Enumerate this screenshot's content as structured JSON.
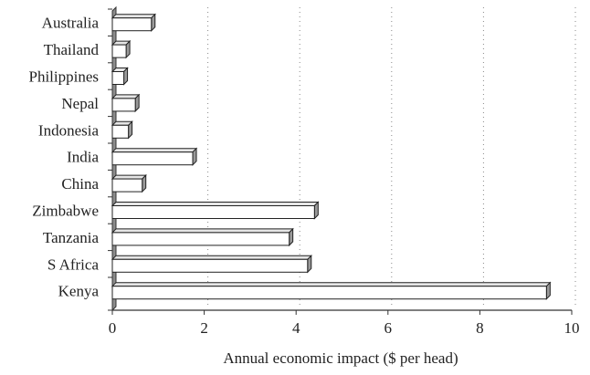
{
  "chart_data": {
    "type": "bar",
    "orientation": "horizontal",
    "style": "3d",
    "categories": [
      "Australia",
      "Thailand",
      "Philippines",
      "Nepal",
      "Indonesia",
      "India",
      "China",
      "Zimbabwe",
      "Tanzania",
      "S Africa",
      "Kenya"
    ],
    "values": [
      0.85,
      0.3,
      0.25,
      0.5,
      0.35,
      1.75,
      0.65,
      4.4,
      3.85,
      4.25,
      9.45
    ],
    "xlabel": "Annual economic impact ($ per head)",
    "ylabel": "",
    "xlim": [
      0,
      10
    ],
    "xticks": [
      "0",
      "2",
      "4",
      "6",
      "8",
      "10"
    ],
    "grid": "vertical dotted",
    "colors": {
      "bar_face": "#ffffff",
      "bar_edge": "#222222",
      "bar_side": "#9a9a9a",
      "wall": "#8c8c8c",
      "grid": "#888888"
    }
  }
}
